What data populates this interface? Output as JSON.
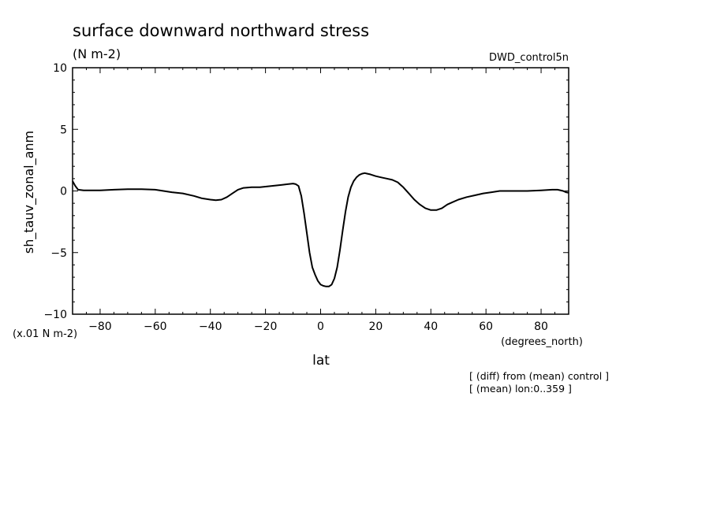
{
  "chart_data": {
    "type": "line",
    "title": "surface downward northward stress",
    "subtitle": "(N m-2)",
    "run_label": "DWD_control5n",
    "ylabel": "sh_tauv_zonal_anm",
    "y_unit_note": "(x.01 N m-2)",
    "xlabel": "lat",
    "x_unit": "(degrees_north)",
    "notes": [
      "[ (diff) from (mean) control ]",
      "[ (mean) lon:0..359 ]"
    ],
    "xlim": [
      -90,
      90
    ],
    "ylim": [
      -10,
      10
    ],
    "x_ticks": [
      -80,
      -60,
      -40,
      -20,
      0,
      20,
      40,
      60,
      80
    ],
    "y_ticks": [
      -10,
      -5,
      0,
      5,
      10
    ],
    "grid": false,
    "line_color": "#000000",
    "series": [
      {
        "x": [
          -90,
          -89,
          -88,
          -86,
          -83,
          -80,
          -75,
          -70,
          -65,
          -60,
          -57,
          -54,
          -50,
          -46,
          -43,
          -40,
          -38,
          -36,
          -34,
          -32,
          -30,
          -28,
          -25,
          -22,
          -20,
          -18,
          -16,
          -14,
          -12,
          -10,
          -9,
          -8,
          -7,
          -6,
          -5,
          -4,
          -3,
          -2,
          -1,
          0,
          1,
          2,
          3,
          4,
          5,
          6,
          7,
          8,
          9,
          10,
          11,
          12,
          13,
          14,
          15,
          16,
          17,
          18,
          20,
          22,
          24,
          26,
          28,
          30,
          32,
          34,
          36,
          38,
          40,
          42,
          44,
          46,
          48,
          50,
          53,
          56,
          59,
          62,
          65,
          70,
          75,
          80,
          84,
          86,
          88,
          89,
          90
        ],
        "y": [
          0.8,
          0.4,
          0.1,
          0.05,
          0.05,
          0.05,
          0.1,
          0.15,
          0.15,
          0.1,
          0.0,
          -0.1,
          -0.2,
          -0.4,
          -0.6,
          -0.7,
          -0.75,
          -0.7,
          -0.5,
          -0.2,
          0.1,
          0.25,
          0.3,
          0.3,
          0.35,
          0.4,
          0.45,
          0.5,
          0.55,
          0.6,
          0.55,
          0.4,
          -0.4,
          -1.8,
          -3.4,
          -5.0,
          -6.2,
          -6.8,
          -7.3,
          -7.6,
          -7.7,
          -7.75,
          -7.75,
          -7.6,
          -7.1,
          -6.2,
          -4.8,
          -3.2,
          -1.7,
          -0.5,
          0.3,
          0.8,
          1.1,
          1.3,
          1.4,
          1.45,
          1.4,
          1.35,
          1.2,
          1.1,
          1.0,
          0.9,
          0.7,
          0.3,
          -0.2,
          -0.7,
          -1.1,
          -1.4,
          -1.55,
          -1.55,
          -1.4,
          -1.1,
          -0.9,
          -0.7,
          -0.5,
          -0.35,
          -0.2,
          -0.1,
          0.0,
          0.0,
          0.0,
          0.05,
          0.1,
          0.1,
          0.0,
          -0.1,
          -0.15
        ]
      }
    ]
  }
}
